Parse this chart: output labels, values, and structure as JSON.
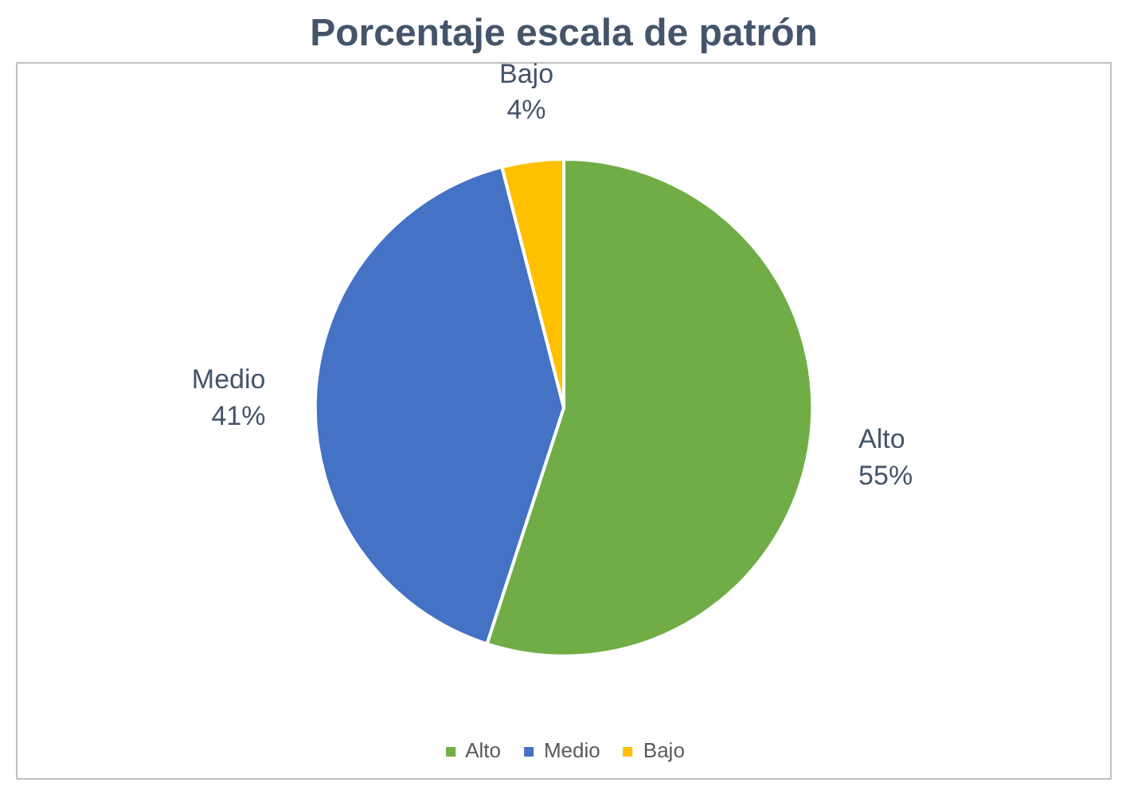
{
  "chart_data": {
    "type": "pie",
    "title": "Porcentaje escala de patrón",
    "categories": [
      "Alto",
      "Medio",
      "Bajo"
    ],
    "values": [
      55,
      41,
      4
    ],
    "value_labels": [
      "55%",
      "41%",
      "4%"
    ],
    "colors": [
      "#70ad47",
      "#4472c4",
      "#ffc000"
    ],
    "legend": "bottom"
  }
}
